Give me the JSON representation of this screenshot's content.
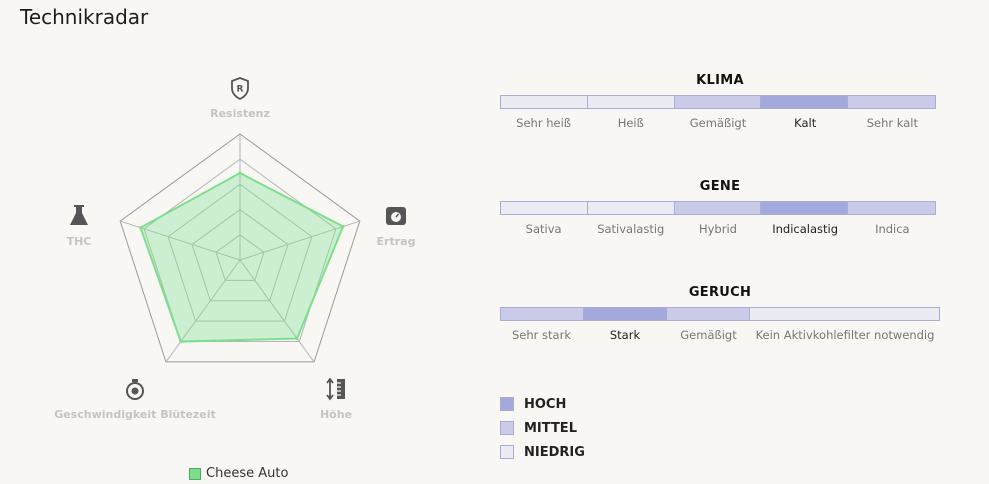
{
  "title": "Technikradar",
  "radar": {
    "legend": "Cheese Auto",
    "series_color": "#7ddf8e",
    "axes": [
      {
        "label": "Resistenz",
        "icon": "shield-r-icon"
      },
      {
        "label": "Ertrag",
        "icon": "scale-weight-icon"
      },
      {
        "label": "Höhe",
        "icon": "height-ruler-icon"
      },
      {
        "label": "Geschwindigkeit Blütezeit",
        "icon": "stopwatch-icon"
      },
      {
        "label": "THC",
        "icon": "flask-icon"
      }
    ]
  },
  "chart_data": {
    "type": "radar",
    "axes": [
      "Resistenz",
      "Ertrag",
      "Höhe",
      "Geschwindigkeit Blütezeit",
      "THC"
    ],
    "series": [
      {
        "name": "Cheese Auto",
        "values": [
          0.69,
          0.86,
          0.77,
          0.8,
          0.83
        ]
      }
    ],
    "range": [
      0,
      1
    ],
    "rings": 5
  },
  "scales": [
    {
      "title": "KLIMA",
      "levels": [
        "low",
        "low",
        "mid",
        "high",
        "mid"
      ],
      "widths": [
        1,
        1,
        1,
        1,
        1
      ],
      "labels": [
        "Sehr heiß",
        "Heiß",
        "Gemäßigt",
        "Kalt",
        "Sehr kalt"
      ],
      "active": 3
    },
    {
      "title": "GENE",
      "levels": [
        "low",
        "low",
        "mid",
        "high",
        "mid"
      ],
      "widths": [
        1,
        1,
        1,
        1,
        1
      ],
      "labels": [
        "Sativa",
        "Sativalastig",
        "Hybrid",
        "Indicalastig",
        "Indica"
      ],
      "active": 3
    },
    {
      "title": "GERUCH",
      "levels": [
        "mid",
        "high",
        "mid",
        "low"
      ],
      "widths": [
        83,
        84,
        83,
        190
      ],
      "labels": [
        "Sehr stark",
        "Stark",
        "Gemäßigt",
        "Kein Aktivkohlefilter notwendig"
      ],
      "active": 1
    }
  ],
  "level_colors": {
    "high": "#a4a9dc",
    "mid": "#c9cbe8",
    "low": "#ebebf3"
  },
  "legend": [
    {
      "label": "HOCH",
      "level": "high"
    },
    {
      "label": "MITTEL",
      "level": "mid"
    },
    {
      "label": "NIEDRIG",
      "level": "low"
    }
  ]
}
